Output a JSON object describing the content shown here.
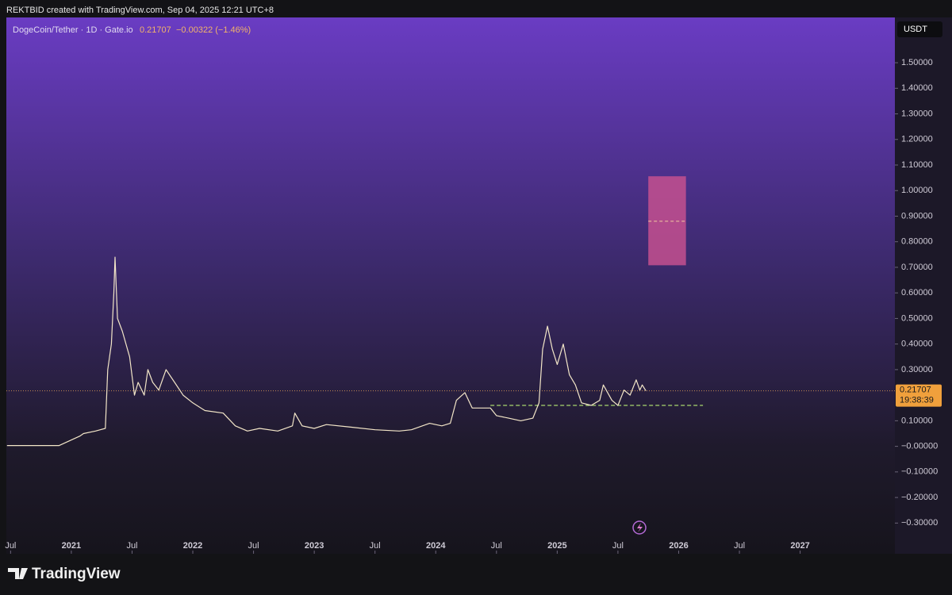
{
  "header": {
    "text": "REKTBID created with TradingView.com, Sep 04, 2025 12:21 UTC+8"
  },
  "chart_data": {
    "type": "line",
    "title": "DogeCoin/Tether · 1D · Gate.io",
    "last_price": 0.21707,
    "change": "−0.00322 (−1.46%)",
    "currency": "USDT",
    "countdown": "19:38:39",
    "color": "#f3e6c8",
    "x": [
      2020.47,
      2020.9,
      2021.07,
      2021.1,
      2021.2,
      2021.28,
      2021.3,
      2021.33,
      2021.35,
      2021.36,
      2021.38,
      2021.42,
      2021.48,
      2021.52,
      2021.55,
      2021.6,
      2021.63,
      2021.67,
      2021.72,
      2021.78,
      2021.85,
      2021.92,
      2022.0,
      2022.1,
      2022.25,
      2022.35,
      2022.45,
      2022.55,
      2022.7,
      2022.82,
      2022.84,
      2022.9,
      2023.0,
      2023.1,
      2023.3,
      2023.5,
      2023.7,
      2023.8,
      2023.95,
      2024.05,
      2024.12,
      2024.17,
      2024.24,
      2024.3,
      2024.45,
      2024.5,
      2024.6,
      2024.7,
      2024.8,
      2024.85,
      2024.88,
      2024.92,
      2024.96,
      2025.0,
      2025.05,
      2025.1,
      2025.15,
      2025.2,
      2025.28,
      2025.35,
      2025.38,
      2025.45,
      2025.5,
      2025.55,
      2025.6,
      2025.65,
      2025.68,
      2025.7,
      2025.73
    ],
    "values": [
      0.003,
      0.003,
      0.04,
      0.05,
      0.06,
      0.07,
      0.3,
      0.4,
      0.6,
      0.74,
      0.5,
      0.45,
      0.35,
      0.2,
      0.25,
      0.2,
      0.3,
      0.25,
      0.22,
      0.3,
      0.25,
      0.2,
      0.17,
      0.14,
      0.13,
      0.08,
      0.06,
      0.07,
      0.06,
      0.08,
      0.13,
      0.08,
      0.07,
      0.085,
      0.075,
      0.065,
      0.06,
      0.065,
      0.09,
      0.08,
      0.09,
      0.18,
      0.21,
      0.15,
      0.15,
      0.12,
      0.11,
      0.1,
      0.11,
      0.17,
      0.38,
      0.47,
      0.38,
      0.32,
      0.4,
      0.28,
      0.24,
      0.17,
      0.16,
      0.18,
      0.24,
      0.18,
      0.16,
      0.22,
      0.2,
      0.26,
      0.22,
      0.24,
      0.21707
    ],
    "xlim": [
      2020.465,
      2027.78
    ],
    "ylim": [
      -0.42,
      1.677
    ],
    "xticks": [
      {
        "value": 2020.5,
        "label": "Jul"
      },
      2021,
      {
        "value": 2021.5,
        "label": "Jul"
      },
      2022,
      {
        "value": 2022.5,
        "label": "Jul"
      },
      2023,
      {
        "value": 2023.5,
        "label": "Jul"
      },
      2024,
      {
        "value": 2024.5,
        "label": "Jul"
      },
      2025,
      {
        "value": 2025.5,
        "label": "Jul"
      },
      2026,
      {
        "value": 2026.5,
        "label": "Jul"
      },
      2027
    ],
    "yticks": [
      {
        "value": 1.5,
        "label": "1.50000"
      },
      {
        "value": 1.4,
        "label": "1.40000"
      },
      {
        "value": 1.3,
        "label": "1.30000"
      },
      {
        "value": 1.2,
        "label": "1.20000"
      },
      {
        "value": 1.1,
        "label": "1.10000"
      },
      {
        "value": 1.0,
        "label": "1.00000"
      },
      {
        "value": 0.9,
        "label": "0.90000"
      },
      {
        "value": 0.8,
        "label": "0.80000"
      },
      {
        "value": 0.7,
        "label": "0.70000"
      },
      {
        "value": 0.6,
        "label": "0.60000"
      },
      {
        "value": 0.5,
        "label": "0.50000"
      },
      {
        "value": 0.4,
        "label": "0.40000"
      },
      {
        "value": 0.3,
        "label": "0.30000"
      },
      {
        "value": 0.1,
        "label": "0.10000"
      },
      {
        "value": 0,
        "label": "−0.00000"
      },
      {
        "value": -0.1,
        "label": "−0.10000"
      },
      {
        "value": -0.2,
        "label": "−0.20000"
      },
      {
        "value": -0.3,
        "label": "−0.30000"
      }
    ],
    "grid": false,
    "support_level": {
      "value": 0.16,
      "x": [
        2024.45,
        2026.2
      ],
      "color": "#a8d66e"
    },
    "target_zone": {
      "x": [
        2025.75,
        2026.06
      ],
      "y": [
        0.708,
        1.056
      ],
      "mid": 0.88,
      "color": "#c4508f"
    }
  },
  "footer": {
    "brand": "TradingView"
  }
}
